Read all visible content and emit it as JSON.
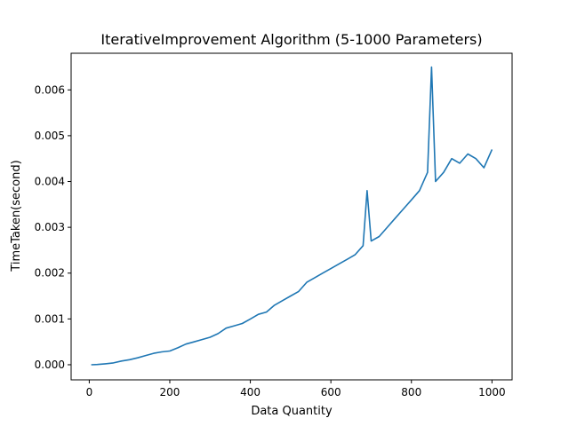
{
  "chart_data": {
    "type": "line",
    "title": "IterativeImprovement Algorithm (5-1000 Parameters)",
    "xlabel": "Data Quantity",
    "ylabel": "TimeTaken(second)",
    "xlim": [
      -45,
      1050
    ],
    "ylim": [
      -0.00033,
      0.0068
    ],
    "xticks": [
      0,
      200,
      400,
      600,
      800,
      1000
    ],
    "xtick_labels": [
      "0",
      "200",
      "400",
      "600",
      "800",
      "1000"
    ],
    "yticks": [
      0.0,
      0.001,
      0.002,
      0.003,
      0.004,
      0.005,
      0.006
    ],
    "ytick_labels": [
      "0.000",
      "0.001",
      "0.002",
      "0.003",
      "0.004",
      "0.005",
      "0.006"
    ],
    "grid": false,
    "series": [
      {
        "color": "#1f77b4",
        "x": [
          5,
          20,
          40,
          60,
          80,
          100,
          120,
          140,
          160,
          180,
          200,
          220,
          240,
          260,
          280,
          300,
          320,
          340,
          360,
          380,
          400,
          420,
          440,
          460,
          480,
          500,
          520,
          540,
          560,
          580,
          600,
          620,
          640,
          660,
          680,
          690,
          700,
          720,
          740,
          760,
          780,
          800,
          820,
          840,
          850,
          860,
          880,
          900,
          920,
          940,
          960,
          980,
          1000
        ],
        "y": [
          0.0,
          5e-06,
          2e-05,
          4e-05,
          8e-05,
          0.00011,
          0.00015,
          0.0002,
          0.00025,
          0.00028,
          0.0003,
          0.00037,
          0.00045,
          0.0005,
          0.00055,
          0.0006,
          0.00068,
          0.0008,
          0.00085,
          0.0009,
          0.001,
          0.0011,
          0.00115,
          0.0013,
          0.0014,
          0.0015,
          0.0016,
          0.0018,
          0.0019,
          0.002,
          0.0021,
          0.0022,
          0.0023,
          0.0024,
          0.0026,
          0.0038,
          0.0027,
          0.0028,
          0.003,
          0.0032,
          0.0034,
          0.0036,
          0.0038,
          0.0042,
          0.0065,
          0.004,
          0.0042,
          0.0045,
          0.0044,
          0.0046,
          0.0045,
          0.0043,
          0.0047
        ]
      }
    ]
  }
}
